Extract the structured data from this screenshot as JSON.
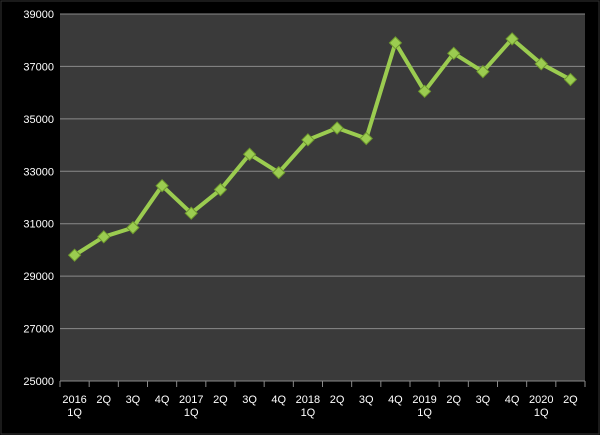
{
  "chart_data": {
    "type": "line",
    "categories": [
      "2016\n1Q",
      "2Q",
      "3Q",
      "4Q",
      "2017\n1Q",
      "2Q",
      "3Q",
      "4Q",
      "2018\n1Q",
      "2Q",
      "3Q",
      "4Q",
      "2019\n1Q",
      "2Q",
      "3Q",
      "4Q",
      "2020\n1Q",
      "2Q"
    ],
    "values": [
      29800,
      30500,
      30850,
      32450,
      31400,
      32300,
      33650,
      32950,
      34200,
      34650,
      34250,
      37900,
      36050,
      37500,
      36800,
      38050,
      37100,
      36500
    ],
    "color": "#9bcc50",
    "ylim": [
      25000,
      39000
    ],
    "yticks": [
      25000,
      27000,
      29000,
      31000,
      33000,
      35000,
      37000,
      39000
    ],
    "grid": true
  }
}
